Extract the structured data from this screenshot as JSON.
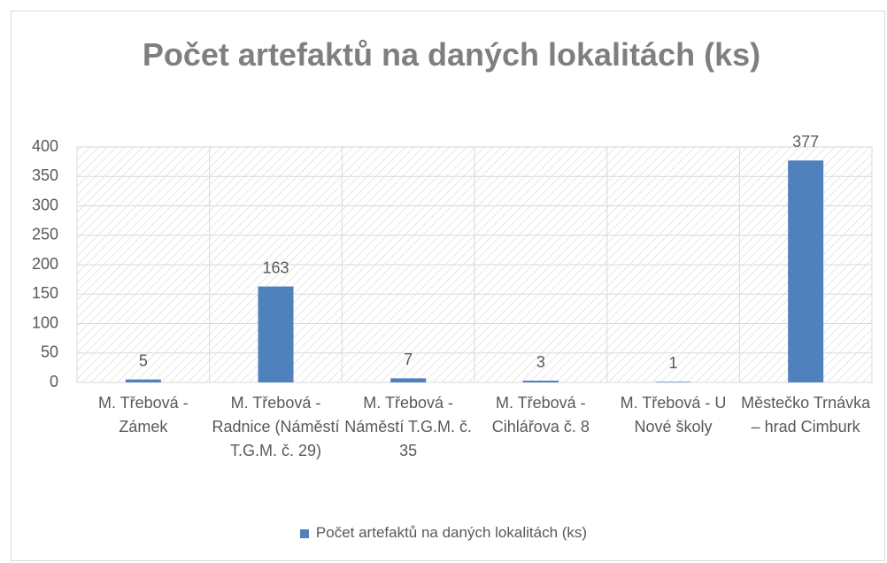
{
  "chart_data": {
    "type": "bar",
    "title": "Počet artefaktů na daných lokalitách (ks)",
    "categories": [
      "M. Třebová - Zámek",
      "M. Třebová - Radnice (Náměstí T.G.M. č. 29)",
      "M. Třebová - Náměstí T.G.M. č. 35",
      "M. Třebová - Cihlářova č. 8",
      "M. Třebová - U Nové školy",
      "Městečko Trnávka – hrad Cimburk"
    ],
    "series": [
      {
        "name": "Počet artefaktů na daných lokalitách (ks)",
        "color": "#4f81bd",
        "values": [
          5,
          163,
          7,
          3,
          1,
          377
        ]
      }
    ],
    "ylim": [
      0,
      400
    ],
    "yticks": [
      0,
      50,
      100,
      150,
      200,
      250,
      300,
      350,
      400
    ],
    "grid": true,
    "legend": "bottom"
  }
}
